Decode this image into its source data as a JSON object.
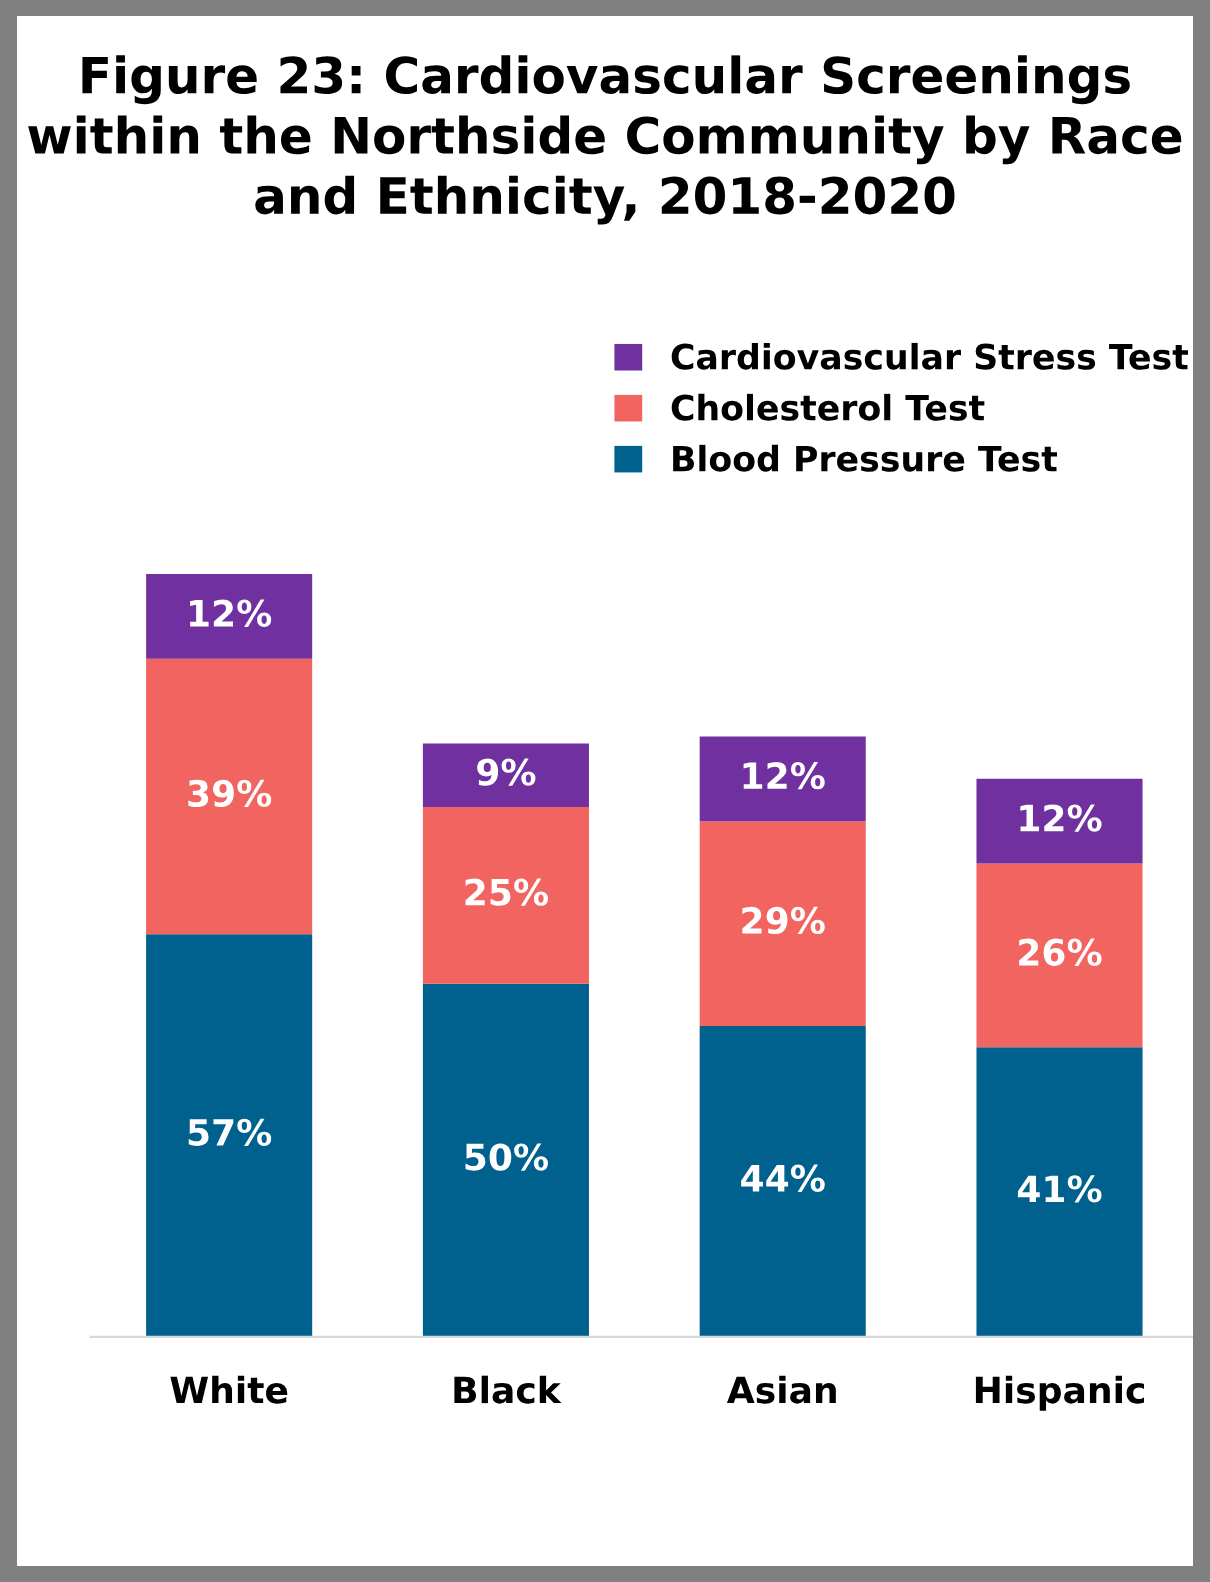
{
  "chart_data": {
    "type": "bar",
    "title": "Figure 23: Cardiovascular Screenings within the Northside Community by Race and Ethnicity, 2018-2020",
    "categories": [
      "White",
      "Black",
      "Asian",
      "Hispanic"
    ],
    "stacked": true,
    "legend": "top right",
    "series": [
      {
        "name": "Blood Pressure Test",
        "color": "#00618f",
        "values": [
          57,
          50,
          44,
          41
        ],
        "value_labels": [
          "57%",
          "50%",
          "44%",
          "41%"
        ]
      },
      {
        "name": "Cholesterol Test",
        "color": "#f2645f",
        "values": [
          39,
          25,
          29,
          26
        ],
        "value_labels": [
          "39%",
          "25%",
          "29%",
          "26%"
        ]
      },
      {
        "name": "Cardiovascular Stress Test",
        "color": "#7030a0",
        "values": [
          12,
          9,
          12,
          12
        ],
        "value_labels": [
          "12%",
          "9%",
          "12%",
          "12%"
        ]
      }
    ]
  }
}
